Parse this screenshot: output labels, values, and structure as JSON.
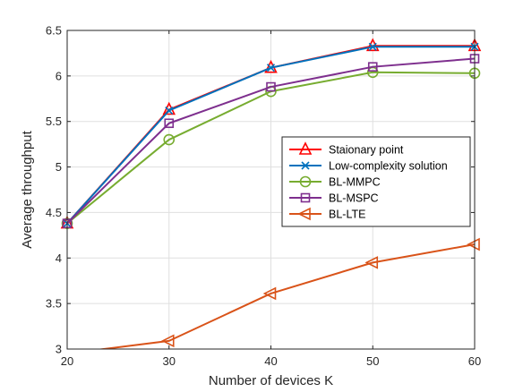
{
  "chart_data": {
    "type": "line",
    "title": "",
    "xlabel": "Number of devices K",
    "ylabel": "Average throughput",
    "x": [
      20,
      30,
      40,
      50,
      60
    ],
    "xlim": [
      20,
      60
    ],
    "ylim": [
      3,
      6.5
    ],
    "xticks": [
      "20",
      "30",
      "40",
      "50",
      "60"
    ],
    "yticks": [
      "3",
      "3.5",
      "4",
      "4.5",
      "5",
      "5.5",
      "6",
      "6.5"
    ],
    "grid": true,
    "legend_position": "center-right",
    "series": [
      {
        "name": "Staionary point",
        "marker": "triangle-up",
        "color": "#ff0000",
        "values": [
          4.38,
          5.63,
          6.09,
          6.33,
          6.33
        ]
      },
      {
        "name": "Low-complexity solution",
        "marker": "x",
        "color": "#0072bd",
        "values": [
          4.38,
          5.62,
          6.09,
          6.32,
          6.32
        ]
      },
      {
        "name": "BL-MMPC",
        "marker": "circle",
        "color": "#77ac30",
        "values": [
          4.38,
          5.3,
          5.83,
          6.04,
          6.03
        ]
      },
      {
        "name": "BL-MSPC",
        "marker": "square",
        "color": "#7e2f8e",
        "values": [
          4.38,
          5.48,
          5.88,
          6.1,
          6.19
        ]
      },
      {
        "name": "BL-LTE",
        "marker": "triangle-left",
        "color": "#d95319",
        "values": [
          2.95,
          3.09,
          3.61,
          3.95,
          4.15
        ]
      }
    ]
  }
}
